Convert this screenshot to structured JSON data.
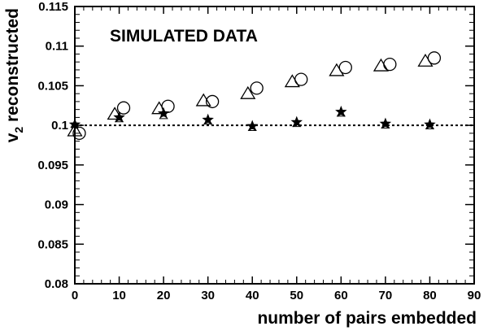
{
  "chart_data": {
    "type": "scatter",
    "title": "",
    "annotation": "SIMULATED DATA",
    "xlabel": "number of pairs embedded",
    "ylabel_main": "v",
    "ylabel_sub": "2",
    "ylabel_rest": " reconstructed",
    "xlim": [
      0,
      90
    ],
    "ylim": [
      0.08,
      0.115
    ],
    "x_ticks": [
      0,
      10,
      20,
      30,
      40,
      50,
      60,
      70,
      80,
      90
    ],
    "x_tick_labels": [
      "0",
      "10",
      "20",
      "30",
      "40",
      "50",
      "60",
      "70",
      "80",
      "90"
    ],
    "y_ticks": [
      0.08,
      0.085,
      0.09,
      0.095,
      0.1,
      0.105,
      0.11,
      0.115
    ],
    "y_tick_labels": [
      "0.08",
      "0.085",
      "0.09",
      "0.095",
      "0.1",
      "0.105",
      "0.11",
      "0.115"
    ],
    "reference_line": 0.1,
    "grid": false,
    "series": [
      {
        "marker": "open-triangle",
        "x": [
          0,
          9,
          19,
          29,
          39,
          49,
          59,
          69,
          79
        ],
        "y": [
          0.0993,
          0.1014,
          0.1021,
          0.1031,
          0.104,
          0.1055,
          0.1069,
          0.1075,
          0.1081
        ]
      },
      {
        "marker": "open-circle",
        "x": [
          1,
          11,
          21,
          31,
          41,
          51,
          61,
          71,
          81
        ],
        "y": [
          0.099,
          0.1022,
          0.1024,
          0.103,
          0.1047,
          0.1058,
          0.1073,
          0.1077,
          0.1085
        ]
      },
      {
        "marker": "filled-star",
        "x": [
          0,
          10,
          20,
          30,
          40,
          50,
          60,
          70,
          80
        ],
        "y": [
          0.1001,
          0.101,
          0.1015,
          0.1007,
          0.0999,
          0.1004,
          0.1017,
          0.1002,
          0.1001
        ],
        "err": [
          0.0004,
          0.0004,
          0.0004,
          0.0004,
          0.0004,
          0.0004,
          0.0004,
          0.0004,
          0.0004
        ]
      },
      {
        "marker": "open-triangle-small",
        "x": [
          0,
          10,
          20,
          30,
          40,
          50,
          60,
          70,
          80
        ],
        "y": [
          0.1002,
          0.1009,
          0.1013,
          0.1006,
          0.0998,
          0.1003,
          0.1016,
          0.1001,
          0.1
        ]
      }
    ]
  }
}
